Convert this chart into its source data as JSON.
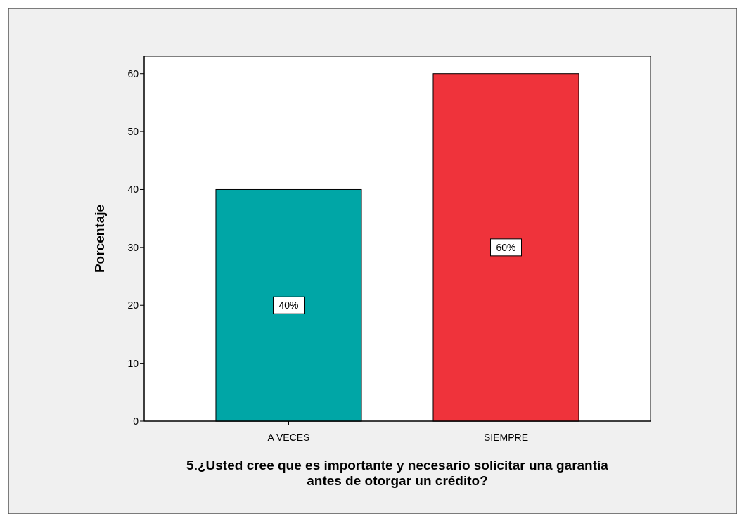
{
  "chart_data": {
    "type": "bar",
    "categories": [
      "A VECES",
      "SIEMPRE"
    ],
    "values": [
      40,
      60
    ],
    "colors": [
      "#00a6a6",
      "#ef333b"
    ],
    "value_labels": [
      "40%",
      "60%"
    ],
    "xlabel": "5.¿Usted cree que es importante y necesario solicitar una garantía antes de otorgar un crédito?",
    "ylabel": "Porcentaje",
    "ylim": [
      0,
      63
    ],
    "yticks": [
      0,
      10,
      20,
      30,
      40,
      50,
      60
    ],
    "grid": false
  }
}
